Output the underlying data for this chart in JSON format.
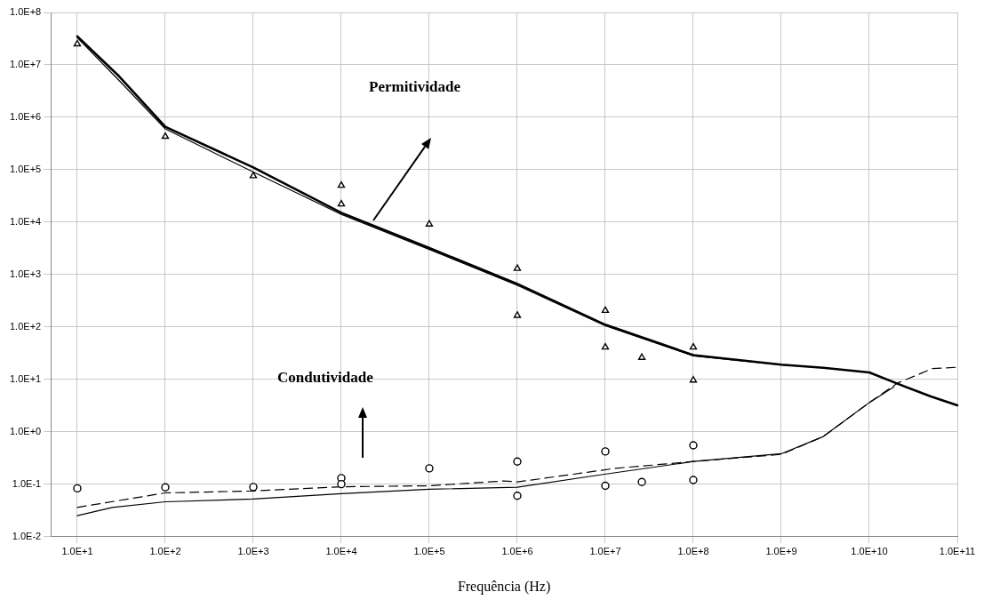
{
  "chart_data": {
    "type": "line",
    "xlabel": "Frequência (Hz)",
    "log": "xy",
    "grid": true,
    "xlim": [
      5,
      100000000000
    ],
    "ylim": [
      0.01,
      100000000
    ],
    "xticks": [
      {
        "value": 10,
        "label": "1.0E+1"
      },
      {
        "value": 100,
        "label": "1.0E+2"
      },
      {
        "value": 1000,
        "label": "1.0E+3"
      },
      {
        "value": 10000,
        "label": "1.0E+4"
      },
      {
        "value": 100000,
        "label": "1.0E+5"
      },
      {
        "value": 1000000,
        "label": "1.0E+6"
      },
      {
        "value": 10000000,
        "label": "1.0E+7"
      },
      {
        "value": 100000000,
        "label": "1.0E+8"
      },
      {
        "value": 1000000000,
        "label": "1.0E+9"
      },
      {
        "value": 10000000000,
        "label": "1.0E+10"
      },
      {
        "value": 100000000000,
        "label": "1.0E+11"
      }
    ],
    "yticks": [
      {
        "value": 0.01,
        "label": "1.0E-2"
      },
      {
        "value": 0.1,
        "label": "1.0E-1"
      },
      {
        "value": 1,
        "label": "1.0E+0"
      },
      {
        "value": 10,
        "label": "1.0E+1"
      },
      {
        "value": 100,
        "label": "1.0E+2"
      },
      {
        "value": 1000,
        "label": "1.0E+3"
      },
      {
        "value": 10000,
        "label": "1.0E+4"
      },
      {
        "value": 100000,
        "label": "1.0E+5"
      },
      {
        "value": 1000000,
        "label": "1.0E+6"
      },
      {
        "value": 10000000,
        "label": "1.0E+7"
      },
      {
        "value": 100000000,
        "label": "1.0E+8"
      }
    ],
    "annotations": [
      "Permitividade",
      "Condutividade"
    ],
    "series": [
      {
        "type": "line",
        "color": "#000000",
        "line_style": "solid",
        "marker": "none",
        "x": [
          10,
          30,
          100,
          1000,
          10000,
          100000,
          1000000,
          10000000,
          100000000,
          1000000000,
          3000000000,
          10000000000,
          20000000000,
          50000000000,
          100000000000
        ],
        "values": [
          35000000,
          6000000,
          660000,
          110000,
          15000,
          3200,
          660,
          110,
          29,
          19,
          16.6,
          13.5,
          8.5,
          4.7,
          3.2
        ]
      },
      {
        "type": "line",
        "color": "#000000",
        "line_style": "solid",
        "marker": "none",
        "x": [
          10,
          30,
          100,
          1000,
          10000,
          100000,
          1000000,
          10000000,
          100000000,
          1000000000,
          3000000000,
          10000000000,
          20000000000,
          50000000000,
          100000000000
        ],
        "values": [
          33000000,
          5000000,
          600000,
          90000,
          14000,
          3000,
          620,
          105,
          28,
          19,
          16.6,
          13.5,
          8.5,
          4.7,
          3.2
        ]
      },
      {
        "type": "line",
        "color": "#000000",
        "line_style": "dashed",
        "marker": "none",
        "x": [
          10,
          100,
          1000,
          10000,
          100000,
          700000,
          1000000,
          13000000,
          100000000,
          1000000000,
          3000000000,
          10000000000,
          21000000000,
          52000000000,
          100000000000
        ],
        "values": [
          0.036,
          0.068,
          0.074,
          0.089,
          0.093,
          0.115,
          0.11,
          0.2,
          0.27,
          0.37,
          0.81,
          3.6,
          8.5,
          16,
          17
        ]
      },
      {
        "type": "line",
        "color": "#000000",
        "line_style": "solid",
        "marker": "none",
        "x": [
          10,
          25,
          100,
          1000,
          10000,
          100000,
          1000000,
          8700000,
          100000000,
          1000000000,
          3000000000,
          10000000000,
          19000000000
        ],
        "values": [
          0.025,
          0.036,
          0.046,
          0.052,
          0.066,
          0.08,
          0.087,
          0.15,
          0.27,
          0.38,
          0.81,
          3.6,
          7.2
        ]
      },
      {
        "type": "scatter",
        "color": "#000000",
        "marker": "triangle",
        "x": [
          10,
          100,
          1000,
          10000,
          10000,
          100000,
          1000000,
          1000000,
          10000000,
          10000000,
          26000000,
          100000000,
          100000000
        ],
        "values": [
          25000000,
          430000,
          76000,
          50000,
          22000,
          9100,
          1300,
          165,
          205,
          41,
          26,
          41,
          9.6
        ]
      },
      {
        "type": "scatter",
        "color": "#000000",
        "marker": "circle",
        "x": [
          10,
          100,
          1000,
          10000,
          10000,
          100000,
          1000000,
          1000000,
          10000000,
          10000000,
          26000000,
          100000000,
          100000000
        ],
        "values": [
          0.083,
          0.087,
          0.088,
          0.13,
          0.1,
          0.2,
          0.27,
          0.06,
          0.42,
          0.093,
          0.11,
          0.55,
          0.12
        ]
      }
    ]
  }
}
